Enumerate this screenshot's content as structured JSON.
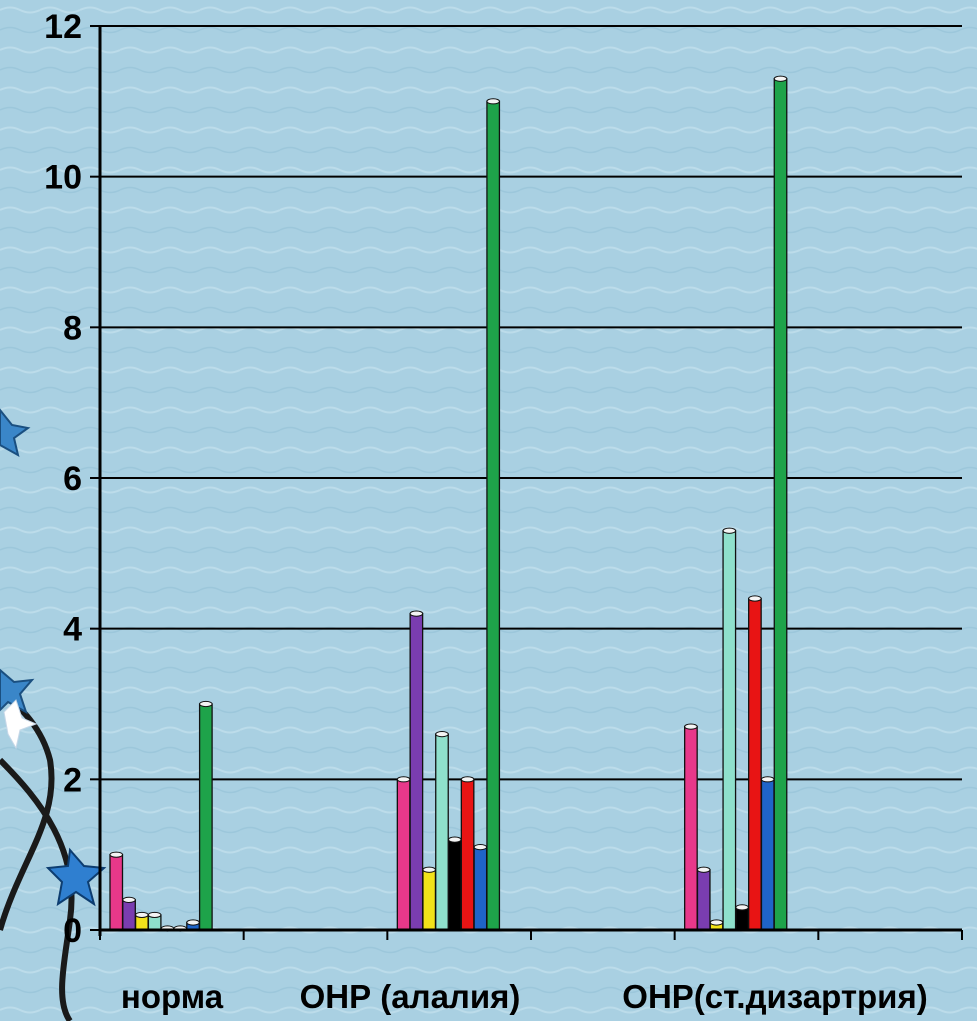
{
  "chart_data": {
    "type": "bar",
    "categories": [
      "норма",
      "ОНР (алалия)",
      "ОНР(ст.дизартрия)"
    ],
    "ylim": [
      0,
      12
    ],
    "yticks": [
      "0",
      "2",
      "4",
      "6",
      "8",
      "10",
      "12"
    ],
    "grid": true,
    "legend": "none",
    "series": [
      {
        "color": "#e8388a",
        "values": [
          1.0,
          2.0,
          2.7
        ]
      },
      {
        "color": "#7a3db0",
        "values": [
          0.4,
          4.2,
          0.8
        ]
      },
      {
        "color": "#f2e21a",
        "values": [
          0.2,
          0.8,
          0.1
        ]
      },
      {
        "color": "#8fe0cc",
        "values": [
          0.2,
          2.6,
          5.3
        ]
      },
      {
        "color": "#000000",
        "values": [
          0.02,
          1.2,
          0.3
        ]
      },
      {
        "color": "#e81414",
        "values": [
          0.02,
          2.0,
          4.4
        ]
      },
      {
        "color": "#1f64c8",
        "values": [
          0.1,
          1.1,
          2.0
        ]
      },
      {
        "color": "#1ea34a",
        "values": [
          3.0,
          11.0,
          11.3
        ]
      }
    ]
  }
}
